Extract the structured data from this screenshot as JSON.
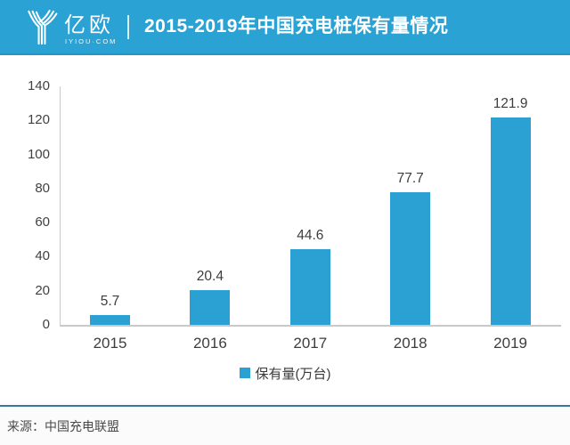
{
  "header": {
    "logo_name": "亿欧",
    "logo_tagline": "IYIOU·COM",
    "title": "2015-2019年中国充电桩保有量情况"
  },
  "chart_data": {
    "type": "bar",
    "title": "2015-2019年中国充电桩保有量情况",
    "categories": [
      "2015",
      "2016",
      "2017",
      "2018",
      "2019"
    ],
    "values": [
      5.7,
      20.4,
      44.6,
      77.7,
      121.9
    ],
    "value_labels": [
      "5.7",
      "20.4",
      "44.6",
      "77.7",
      "121.9"
    ],
    "series_name": "保有量(万台)",
    "xlabel": "",
    "ylabel": "",
    "ylim": [
      0,
      140
    ],
    "yticks": [
      0,
      20,
      40,
      60,
      80,
      100,
      120,
      140
    ],
    "grid": false,
    "legend_position": "bottom",
    "bar_color": "#2aa1d2"
  },
  "legend": {
    "label": "保有量(万台)",
    "swatch_color": "#2aa1d2"
  },
  "footer": {
    "source": "来源：中国充电联盟"
  },
  "colors": {
    "header_bg": "#2aa2d3",
    "bar": "#2aa1d2",
    "axis_line": "#c9c9c9",
    "divider_line": "#35799f",
    "text": "#3d3d3d"
  }
}
